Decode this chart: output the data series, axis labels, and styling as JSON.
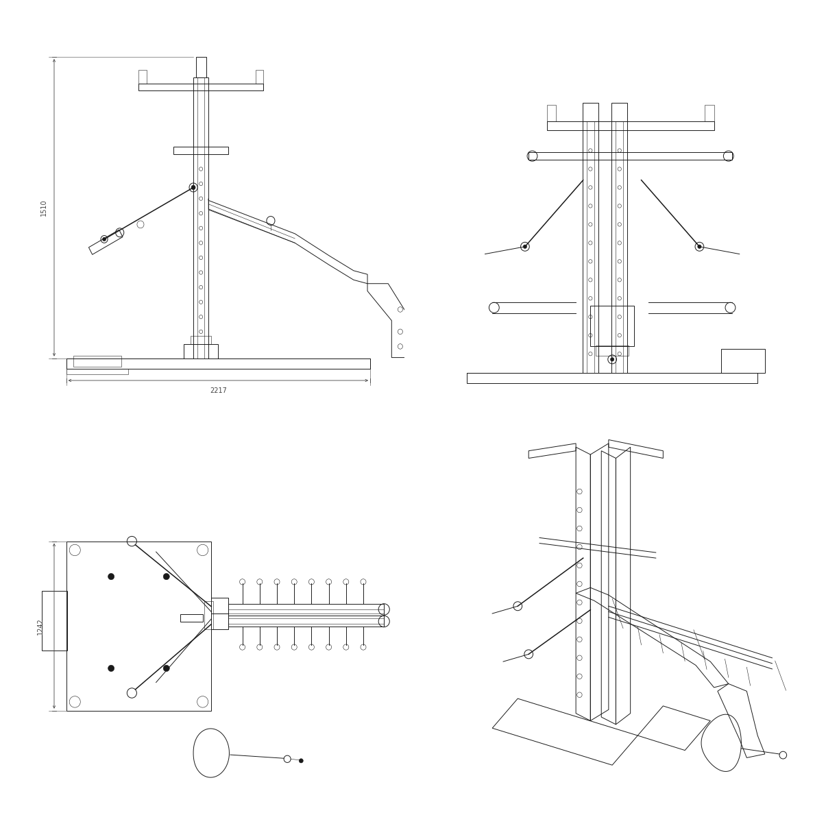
{
  "bg_color": "#ffffff",
  "lc": "#1a1a1a",
  "dc": "#444444",
  "lw": 0.7,
  "lw_thick": 1.1,
  "lw_thin": 0.4,
  "dim_fs": 7,
  "fig_w": 12.05,
  "fig_h": 12.05,
  "side_dim_w": "2217",
  "side_dim_h": "1510",
  "top_dim_h": "1242"
}
